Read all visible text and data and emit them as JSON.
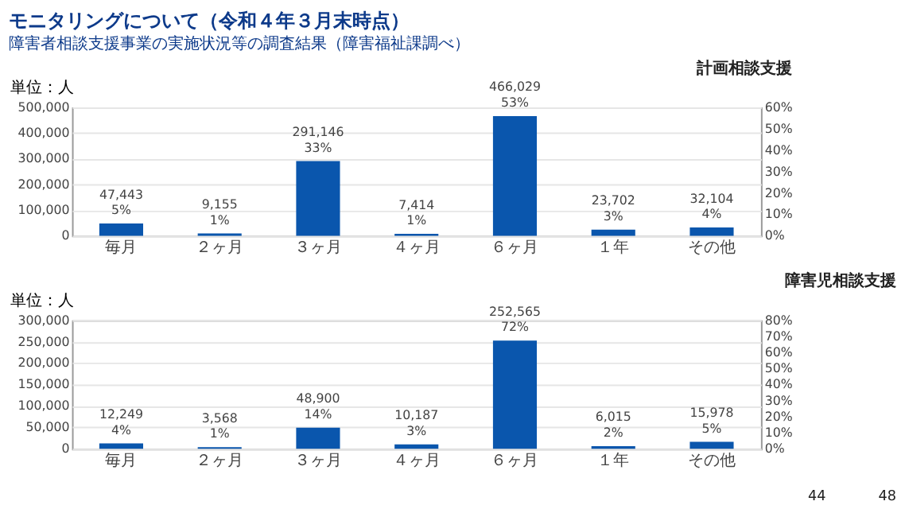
{
  "chart_data": [
    {
      "type": "bar",
      "title": "モニタリングについて（令和４年３月末時点）",
      "subtitle": "障害者相談支援事業の実施状況等の調査結果（障害福祉課調べ）",
      "xlabel": "計画相談支援",
      "ylabel": "単位：人",
      "categories": [
        "毎月",
        "２ヶ月",
        "３ヶ月",
        "４ヶ月",
        "６ヶ月",
        "１年",
        "その他"
      ],
      "values": [
        47443,
        9155,
        291146,
        7414,
        466029,
        23702,
        32104
      ],
      "color": "#0a56ad",
      "value_labels": [
        "47,443\n5%",
        "9,155\n1%",
        "291,146\n33%",
        "7,414\n1%",
        "466,029\n53%",
        "23,702\n3%",
        "32,104\n4%"
      ],
      "ylim": [
        0,
        500000
      ],
      "yticks": [
        0,
        {
          "value": 100000,
          "label": "100,000"
        },
        {
          "value": 200000,
          "label": "200,000"
        },
        {
          "value": 300000,
          "label": "300,000"
        },
        {
          "value": 400000,
          "label": "400,000"
        },
        {
          "value": 500000,
          "label": "500,000"
        }
      ],
      "y2lim": [
        0,
        60
      ],
      "y2ticks": [
        {
          "value": 0,
          "label": "0%"
        },
        {
          "value": 10,
          "label": "10%"
        },
        {
          "value": 20,
          "label": "20%"
        },
        {
          "value": 30,
          "label": "30%"
        },
        {
          "value": 40,
          "label": "40%"
        },
        {
          "value": 50,
          "label": "50%"
        },
        {
          "value": 60,
          "label": "60%"
        }
      ],
      "grid": "y"
    },
    {
      "type": "bar",
      "xlabel": "障害児相談支援",
      "ylabel": "単位：人",
      "categories": [
        "毎月",
        "２ヶ月",
        "３ヶ月",
        "４ヶ月",
        "６ヶ月",
        "１年",
        "その他"
      ],
      "values": [
        12249,
        3568,
        48900,
        10187,
        252565,
        6015,
        15978
      ],
      "color": "#0a56ad",
      "value_labels": [
        "12,249\n4%",
        "3,568\n1%",
        "48,900\n14%",
        "10,187\n3%",
        "252,565\n72%",
        "6,015\n2%",
        "15,978\n5%"
      ],
      "ylim": [
        0,
        300000
      ],
      "yticks": [
        0,
        {
          "value": 50000,
          "label": "50,000"
        },
        {
          "value": 100000,
          "label": "100,000"
        },
        {
          "value": 150000,
          "label": "150,000"
        },
        {
          "value": 200000,
          "label": "200,000"
        },
        {
          "value": 250000,
          "label": "250,000"
        },
        {
          "value": 300000,
          "label": "300,000"
        }
      ],
      "y2lim": [
        0,
        80
      ],
      "y2ticks": [
        {
          "value": 0,
          "label": "0%"
        },
        {
          "value": 10,
          "label": "10%"
        },
        {
          "value": 20,
          "label": "20%"
        },
        {
          "value": 30,
          "label": "30%"
        },
        {
          "value": 40,
          "label": "40%"
        },
        {
          "value": 50,
          "label": "50%"
        },
        {
          "value": 60,
          "label": "60%"
        },
        {
          "value": 70,
          "label": "70%"
        },
        {
          "value": 80,
          "label": "80%"
        }
      ],
      "grid": "y",
      "annotations": [
        "44",
        "48"
      ]
    }
  ]
}
